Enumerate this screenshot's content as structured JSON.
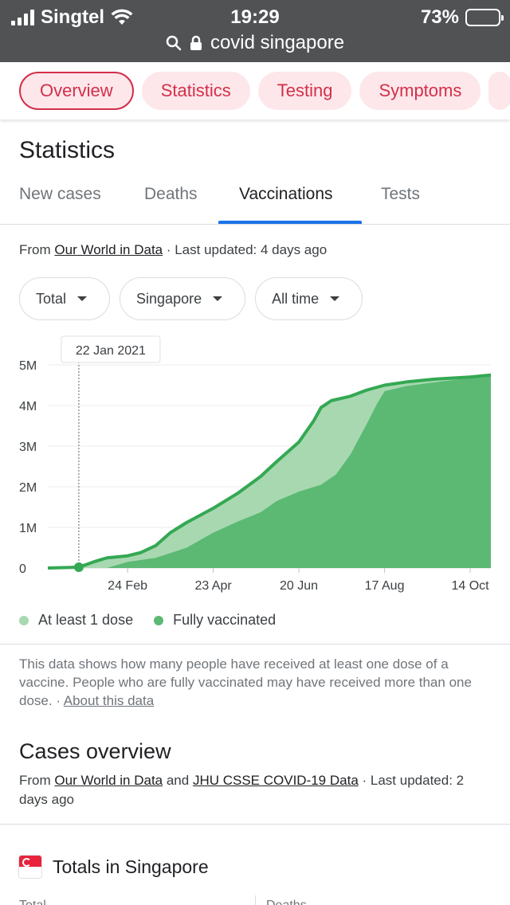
{
  "status_bar": {
    "carrier": "Singtel",
    "time": "19:29",
    "battery": "73%",
    "battery_level": 0.73
  },
  "browser": {
    "url_text": "covid singapore"
  },
  "chips": [
    {
      "label": "Overview",
      "active": true
    },
    {
      "label": "Statistics",
      "active": false
    },
    {
      "label": "Testing",
      "active": false
    },
    {
      "label": "Symptoms",
      "active": false
    }
  ],
  "section_title": "Statistics",
  "tabs": [
    "New cases",
    "Deaths",
    "Vaccinations",
    "Tests"
  ],
  "active_tab": "Vaccinations",
  "source": {
    "prefix": "From ",
    "link": "Our World in Data",
    "suffix": " · Last updated: 4 days ago"
  },
  "filters": [
    "Total",
    "Singapore",
    "All time"
  ],
  "chart_data": {
    "type": "area",
    "tooltip_date": "22 Jan 2021",
    "y_tick_labels": [
      "5M",
      "4M",
      "3M",
      "2M",
      "1M",
      "0"
    ],
    "y_ticks": [
      5000000,
      4000000,
      3000000,
      2000000,
      1000000,
      0
    ],
    "ylim": [
      0,
      5000000
    ],
    "x_tick_labels": [
      "24 Feb",
      "23 Apr",
      "20 Jun",
      "17 Aug",
      "14 Oct"
    ],
    "x_ticks": [
      "2021-02-24",
      "2021-04-23",
      "2021-06-20",
      "2021-08-17",
      "2021-10-14"
    ],
    "xlim": [
      "2021-01-01",
      "2021-10-28"
    ],
    "highlight_point": {
      "x": "2021-01-22",
      "y": 20000
    },
    "colors": {
      "at_least_one_dose": "#a8d8b0",
      "fully_vaccinated": "#5bb974",
      "line": "#34a853"
    },
    "series": [
      {
        "name": "At least 1 dose",
        "points": [
          [
            "2021-01-01",
            0
          ],
          [
            "2021-01-22",
            20000
          ],
          [
            "2021-02-01",
            150000
          ],
          [
            "2021-02-10",
            250000
          ],
          [
            "2021-02-24",
            300000
          ],
          [
            "2021-03-05",
            380000
          ],
          [
            "2021-03-15",
            550000
          ],
          [
            "2021-03-25",
            870000
          ],
          [
            "2021-04-05",
            1120000
          ],
          [
            "2021-04-23",
            1470000
          ],
          [
            "2021-05-10",
            1850000
          ],
          [
            "2021-05-25",
            2250000
          ],
          [
            "2021-06-05",
            2620000
          ],
          [
            "2021-06-20",
            3100000
          ],
          [
            "2021-06-30",
            3620000
          ],
          [
            "2021-07-05",
            3950000
          ],
          [
            "2021-07-12",
            4120000
          ],
          [
            "2021-07-25",
            4230000
          ],
          [
            "2021-08-05",
            4380000
          ],
          [
            "2021-08-17",
            4500000
          ],
          [
            "2021-09-01",
            4580000
          ],
          [
            "2021-09-20",
            4650000
          ],
          [
            "2021-10-14",
            4700000
          ],
          [
            "2021-10-28",
            4750000
          ]
        ]
      },
      {
        "name": "Fully vaccinated",
        "points": [
          [
            "2021-01-01",
            0
          ],
          [
            "2021-01-22",
            0
          ],
          [
            "2021-02-10",
            0
          ],
          [
            "2021-02-24",
            150000
          ],
          [
            "2021-03-15",
            250000
          ],
          [
            "2021-04-05",
            500000
          ],
          [
            "2021-04-23",
            870000
          ],
          [
            "2021-05-10",
            1150000
          ],
          [
            "2021-05-25",
            1370000
          ],
          [
            "2021-06-05",
            1650000
          ],
          [
            "2021-06-20",
            1880000
          ],
          [
            "2021-07-05",
            2050000
          ],
          [
            "2021-07-15",
            2300000
          ],
          [
            "2021-07-25",
            2800000
          ],
          [
            "2021-08-05",
            3550000
          ],
          [
            "2021-08-12",
            4050000
          ],
          [
            "2021-08-17",
            4350000
          ],
          [
            "2021-09-01",
            4480000
          ],
          [
            "2021-09-20",
            4570000
          ],
          [
            "2021-10-14",
            4680000
          ],
          [
            "2021-10-28",
            4750000
          ]
        ]
      }
    ]
  },
  "legend": [
    "At least 1 dose",
    "Fully vaccinated"
  ],
  "note": {
    "text": "This data shows how many people have received at least one dose of a vaccine. People who are fully vaccinated may have received more than one dose.",
    "separator": " · ",
    "link": "About this data"
  },
  "cases_overview": {
    "title": "Cases overview",
    "prefix": "From ",
    "link1": "Our World in Data",
    "middle": " and ",
    "link2": "JHU CSSE COVID-19 Data",
    "suffix": " · Last updated: 2 days ago"
  },
  "totals_title": "Totals in Singapore",
  "bottom_labels": [
    "Total",
    "Deaths"
  ]
}
